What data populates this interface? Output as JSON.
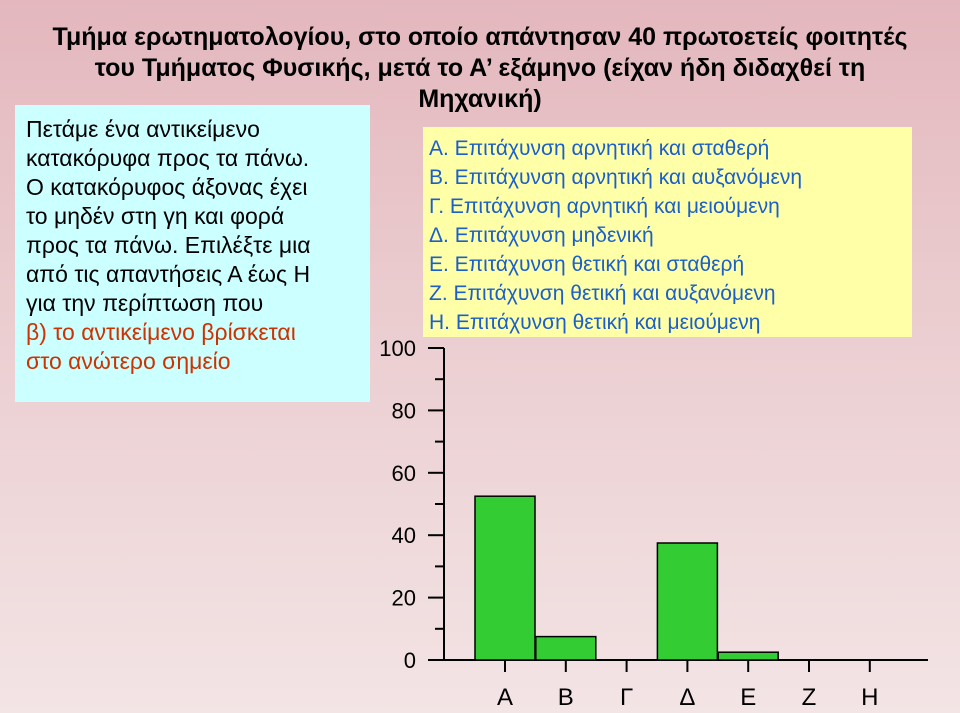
{
  "title": {
    "line1": "Τμήμα ερωτηματολογίου, στο οποίο απάντησαν 40 πρωτοετείς φοιτητές",
    "line2": "του Τμήματος Φυσικής, μετά το Α’ εξάμηνο (είχαν ήδη διδαχθεί τη",
    "line3": "Μηχανική)"
  },
  "question": {
    "lines": [
      "Πετάμε ένα αντικείμενο",
      "κατακόρυφα προς τα πάνω.",
      "Ο κατακόρυφος άξονας έχει",
      "το μηδέν στη γη και φορά",
      "προς τα πάνω. Επιλέξτε μια",
      "από τις απαντήσεις Α έως Η",
      "για την περίπτωση που"
    ],
    "highlight_lines": [
      "β) το αντικείμενο βρίσκεται",
      "στο ανώτερο σημείο"
    ],
    "highlight_color": "#cc3300"
  },
  "answers": [
    "Α. Επιτάχυνση αρνητική και σταθερή",
    "Β. Επιτάχυνση αρνητική και αυξανόμενη",
    "Γ. Επιτάχυνση αρνητική και μειούμενη",
    "Δ. Επιτάχυνση μηδενική",
    "Ε. Επιτάχυνση θετική και σταθερή",
    "Ζ. Επιτάχυνση θετική και αυξανόμενη",
    "Η. Επιτάχυνση θετική και μειούμενη"
  ],
  "colors": {
    "bar_fill": "#33cc33",
    "question_bg": "#ccffff",
    "answers_bg": "#ffffa8",
    "answers_text": "#1a5fcc"
  },
  "chart_data": {
    "type": "bar",
    "categories": [
      "Α",
      "Β",
      "Γ",
      "Δ",
      "Ε",
      "Ζ",
      "Η"
    ],
    "values": [
      52.5,
      7.5,
      0,
      37.5,
      2.5,
      0,
      0
    ],
    "ylim": [
      0,
      100
    ],
    "yticks": [
      0,
      20,
      40,
      60,
      80,
      100
    ],
    "ytick_labels": [
      "0",
      "20",
      "40",
      "60",
      "80",
      "100"
    ],
    "ylabel": "",
    "xlabel": "",
    "grid": false
  }
}
